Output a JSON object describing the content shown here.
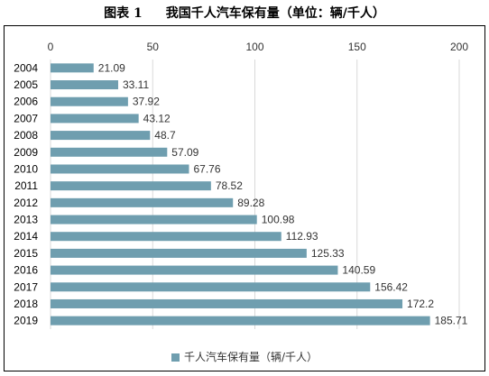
{
  "figure_number": "图表 1",
  "figure_title": "我国千人汽车保有量（单位：辆/千人）",
  "colors": {
    "bar": "#6F9EAF",
    "grid": "#d9d9d9",
    "frame": "#000000"
  },
  "chart_data": {
    "type": "bar",
    "orientation": "horizontal",
    "categories": [
      "2004",
      "2005",
      "2006",
      "2007",
      "2008",
      "2009",
      "2010",
      "2011",
      "2012",
      "2013",
      "2014",
      "2015",
      "2016",
      "2017",
      "2018",
      "2019"
    ],
    "series": [
      {
        "name": "千人汽车保有量（辆/千人）",
        "values": [
          21.09,
          33.11,
          37.92,
          43.12,
          48.7,
          57.09,
          67.76,
          78.52,
          89.28,
          100.98,
          112.93,
          125.33,
          140.59,
          156.42,
          172.2,
          185.71
        ]
      }
    ],
    "value_labels": [
      "21.09",
      "33.11",
      "37.92",
      "43.12",
      "48.7",
      "57.09",
      "67.76",
      "78.52",
      "89.28",
      "100.98",
      "112.93",
      "125.33",
      "140.59",
      "156.42",
      "172.2",
      "185.71"
    ],
    "xlim": [
      0,
      200
    ],
    "xticks": [
      "0",
      "50",
      "100",
      "150",
      "200"
    ],
    "x_axis_position": "top",
    "grid": true,
    "legend": "bottom"
  }
}
